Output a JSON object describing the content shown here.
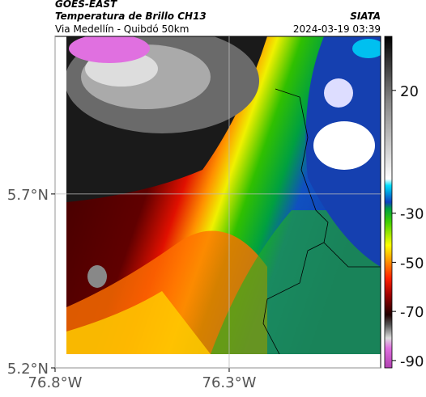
{
  "header": {
    "title": "GOES-EAST",
    "subtitle": "Temperatura de Brillo CH13",
    "region": "Via Medellín - Quibdó 50km",
    "source": "SIATA",
    "datetime": "2024-03-19 03:39"
  },
  "map": {
    "xlim": [
      -76.8,
      -75.865
    ],
    "ylim": [
      5.2,
      6.153
    ],
    "xticks": [
      {
        "value": -76.8,
        "label": "76.8°W"
      },
      {
        "value": -76.3,
        "label": "76.3°W"
      }
    ],
    "yticks": [
      {
        "value": 5.2,
        "label": "5.2°N"
      },
      {
        "value": 5.7,
        "label": "5.7°N"
      }
    ],
    "grid": true
  },
  "colorbar": {
    "clim": [
      -93,
      42
    ],
    "ticks": [
      20,
      -30,
      -50,
      -70,
      -90
    ]
  }
}
